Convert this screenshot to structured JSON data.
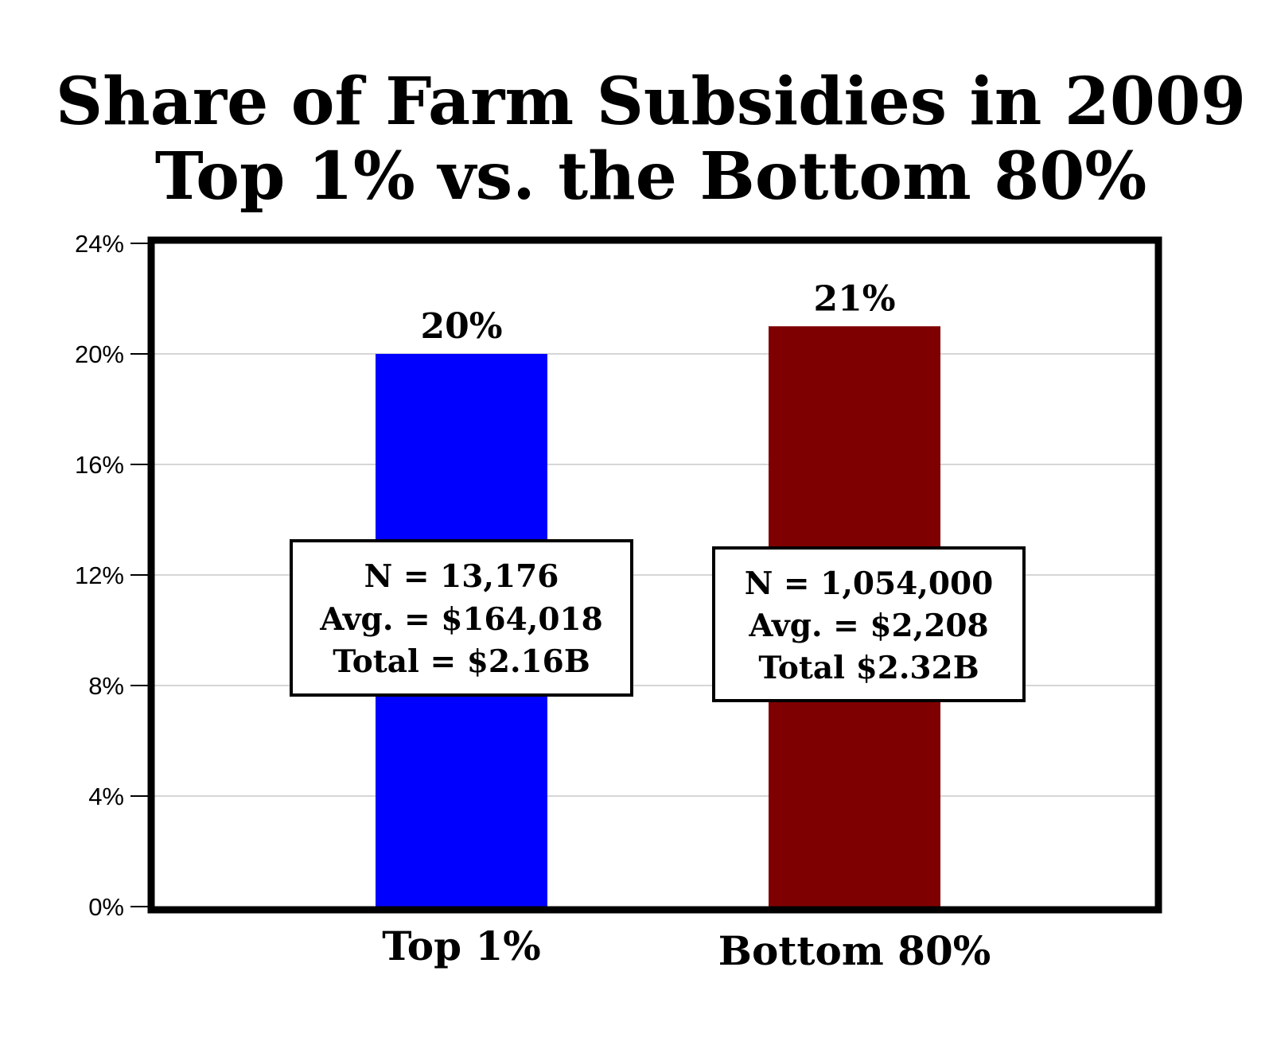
{
  "chart_data": {
    "type": "bar",
    "title": "Share of Farm Subsidies in 2009",
    "subtitle": "Top 1% vs. the Bottom 80%",
    "categories": [
      "Top 1%",
      "Bottom 80%"
    ],
    "values": [
      20,
      21
    ],
    "data_labels": [
      "20%",
      "21%"
    ],
    "colors": [
      "#0000ff",
      "#7f0000"
    ],
    "ylim": [
      0,
      24
    ],
    "yticks": [
      0,
      4,
      8,
      12,
      16,
      20,
      24
    ],
    "ytick_labels": [
      "0%",
      "4%",
      "8%",
      "12%",
      "16%",
      "20%",
      "24%"
    ],
    "xlabel": "",
    "ylabel": "",
    "grid": true,
    "annotations": [
      {
        "lines": [
          "N = 13,176",
          "Avg. = $164,018",
          "Total = $2.16B"
        ]
      },
      {
        "lines": [
          "N = 1,054,000",
          "Avg. = $2,208",
          "Total $2.32B"
        ]
      }
    ]
  }
}
